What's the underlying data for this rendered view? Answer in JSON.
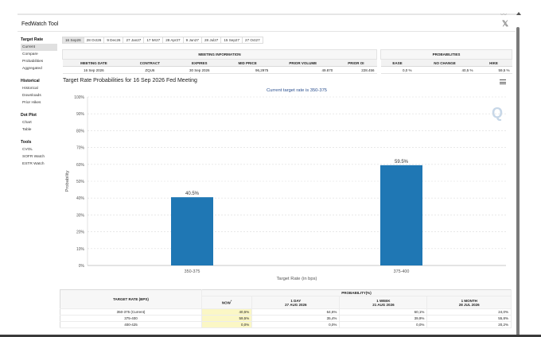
{
  "app_title": "FedWatch Tool",
  "x_logo": "𝕏",
  "sidebar": {
    "sections": [
      {
        "title": "Target Rate",
        "items": [
          "Current",
          "Compare",
          "Probabilities",
          "Aggregated"
        ]
      },
      {
        "title": "Historical",
        "items": [
          "Historical",
          "Downloads",
          "Prior Hikes"
        ]
      },
      {
        "title": "Dot Plot",
        "items": [
          "Chart",
          "Table"
        ]
      },
      {
        "title": "Tools",
        "items": [
          "CVOL",
          "SOFR Watch",
          "ESTR Watch"
        ]
      }
    ],
    "active_item": "Current"
  },
  "tabs": [
    "16 Sep26",
    "28 Oct26",
    "9 Dec26",
    "27 Jan27",
    "17 Mr27",
    "28 Apr27",
    "9 Jun27",
    "28 Jul27",
    "15 Sep27",
    "27 Oct27"
  ],
  "active_tab": "16 Sep26",
  "meeting_info": {
    "group_header": "MEETING INFORMATION",
    "columns": [
      "MEETING DATE",
      "CONTRACT",
      "EXPIRES",
      "MID PRICE",
      "PRIOR VOLUME",
      "PRIOR OI"
    ],
    "row": [
      "16 Sep 2026",
      "ZQU6",
      "30 Sep 2026",
      "96,2975",
      "49.870",
      "228.456"
    ]
  },
  "probabilities": {
    "group_header": "PROBABILITIES",
    "columns": [
      "EASE",
      "NO CHANGE",
      "HIKE"
    ],
    "row": [
      "0,0 %",
      "40,5 %",
      "59,5 %"
    ]
  },
  "chart": {
    "title": "Target Rate Probabilities for 16 Sep 2026 Fed Meeting",
    "subtitle": "Current target rate is 350-375",
    "watermark": "Q",
    "bar_color": "#1f77b4"
  },
  "chart_data": {
    "type": "bar",
    "categories": [
      "350-375",
      "375-400"
    ],
    "values": [
      40.5,
      59.5
    ],
    "value_labels": [
      "40.5%",
      "59.5%"
    ],
    "title": "Target Rate Probabilities for 16 Sep 2026 Fed Meeting",
    "subtitle": "Current target rate is 350-375",
    "xlabel": "Target Rate (in bps)",
    "ylabel": "Probability",
    "ylim": [
      0,
      100
    ],
    "yticks": [
      "0%",
      "10%",
      "20%",
      "30%",
      "40%",
      "50%",
      "60%",
      "70%",
      "80%",
      "90%",
      "100%"
    ],
    "grid": true
  },
  "prob_table": {
    "group_header": "PROBABILITY(%)",
    "row_header": "TARGET RATE (BPS)",
    "columns": [
      {
        "label": "NOW",
        "marker": "*",
        "sub": ""
      },
      {
        "label": "1 DAY",
        "sub": "27 AUG 2026"
      },
      {
        "label": "1 WEEK",
        "sub": "21 AUG 2026"
      },
      {
        "label": "1 MONTH",
        "sub": "28 JUL 2026"
      }
    ],
    "rows": [
      [
        "350-375 (Current)",
        "40,5%",
        "64,6%",
        "60,1%",
        "24,0%"
      ],
      [
        "375-400",
        "59,5%",
        "35,4%",
        "39,9%",
        "55,8%"
      ],
      [
        "400-425",
        "0,0%",
        "0,0%",
        "0,0%",
        "20,2%"
      ]
    ]
  }
}
